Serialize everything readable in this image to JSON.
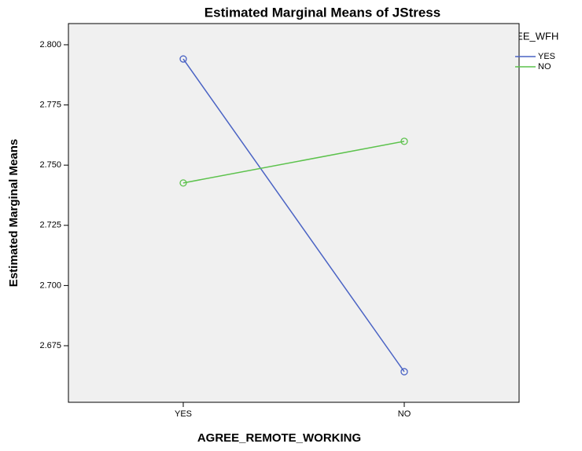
{
  "chart_data": {
    "type": "line",
    "title": "Estimated Marginal Means of JStress",
    "x_label": "AGREE_REMOTE_WORKING",
    "y_label": "Estimated Marginal Means",
    "legend_title": "AGREE_WFH",
    "legend_position": "right",
    "categories": [
      "YES",
      "NO"
    ],
    "series": [
      {
        "name": "YES",
        "color": "#4a63c4",
        "values": [
          2.7941,
          2.6642
        ]
      },
      {
        "name": "NO",
        "color": "#5cc24c",
        "values": [
          2.7426,
          2.7599
        ]
      }
    ],
    "ylim": [
      2.6515,
      2.8088
    ],
    "yticks": [
      {
        "value": 2.675,
        "label": "2.675"
      },
      {
        "value": 2.7,
        "label": "2.700"
      },
      {
        "value": 2.725,
        "label": "2.725"
      },
      {
        "value": 2.75,
        "label": "2.750"
      },
      {
        "value": 2.775,
        "label": "2.775"
      },
      {
        "value": 2.8,
        "label": "2.800"
      }
    ],
    "grid": false,
    "plot_background": "#f0f0f0"
  }
}
